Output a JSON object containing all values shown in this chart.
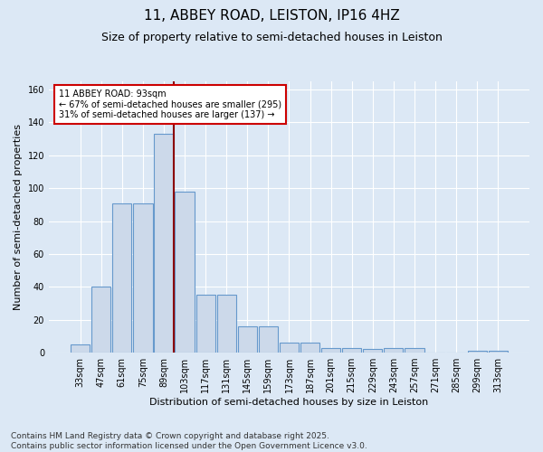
{
  "title": "11, ABBEY ROAD, LEISTON, IP16 4HZ",
  "subtitle": "Size of property relative to semi-detached houses in Leiston",
  "xlabel": "Distribution of semi-detached houses by size in Leiston",
  "ylabel": "Number of semi-detached properties",
  "bins": [
    "33sqm",
    "47sqm",
    "61sqm",
    "75sqm",
    "89sqm",
    "103sqm",
    "117sqm",
    "131sqm",
    "145sqm",
    "159sqm",
    "173sqm",
    "187sqm",
    "201sqm",
    "215sqm",
    "229sqm",
    "243sqm",
    "257sqm",
    "271sqm",
    "285sqm",
    "299sqm",
    "313sqm"
  ],
  "values": [
    5,
    40,
    91,
    91,
    133,
    98,
    35,
    35,
    16,
    16,
    6,
    6,
    3,
    3,
    2,
    3,
    3,
    0,
    0,
    1,
    1
  ],
  "bar_color": "#ccd9ea",
  "bar_edge_color": "#6699cc",
  "vline_index": 4,
  "vline_color": "#8b0000",
  "annotation_text": "11 ABBEY ROAD: 93sqm\n← 67% of semi-detached houses are smaller (295)\n31% of semi-detached houses are larger (137) →",
  "annotation_box_color": "#ffffff",
  "annotation_box_edge_color": "#cc0000",
  "ylim": [
    0,
    165
  ],
  "yticks": [
    0,
    20,
    40,
    60,
    80,
    100,
    120,
    140,
    160
  ],
  "footer": "Contains HM Land Registry data © Crown copyright and database right 2025.\nContains public sector information licensed under the Open Government Licence v3.0.",
  "bg_color": "#dce8f5",
  "plot_bg_color": "#dce8f5",
  "grid_color": "#ffffff",
  "title_fontsize": 11,
  "subtitle_fontsize": 9,
  "axis_label_fontsize": 8,
  "tick_fontsize": 7,
  "footer_fontsize": 6.5
}
